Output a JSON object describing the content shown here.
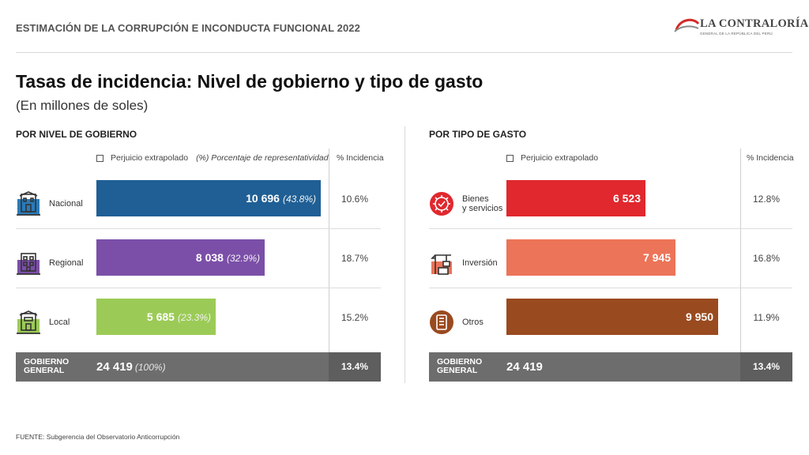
{
  "header": {
    "topbar": "ESTIMACIÓN DE LA CORRUPCIÓN E INCONDUCTA FUNCIONAL 2022"
  },
  "logo": {
    "title": "LA CONTRALORÍA",
    "subtitle": "GENERAL DE LA REPÚBLICA DEL PERÚ"
  },
  "title": "Tasas de incidencia: Nivel de gobierno y tipo de gasto",
  "subtitle": "(En millones de soles)",
  "footer": "FUENTE: Subgerencia del Observatorio Anticorrupción",
  "chart_data": [
    {
      "type": "bar",
      "orientation": "horizontal",
      "title": "POR NIVEL DE GOBIERNO",
      "legend": {
        "series": "Perjuicio extrapolado",
        "note": "(%) Porcentaje de representatividad"
      },
      "incidence_header": "% Incidencia",
      "categories": [
        "Nacional",
        "Regional",
        "Local"
      ],
      "icons": [
        "government-building-icon",
        "regional-building-icon",
        "local-building-icon"
      ],
      "values": [
        10696,
        8038,
        5685
      ],
      "value_labels": [
        "10 696",
        "8 038",
        "5 685"
      ],
      "share_labels": [
        "(43.8%)",
        "(32.9%)",
        "(23.3%)"
      ],
      "incidence": [
        "10.6%",
        "18.7%",
        "15.2%"
      ],
      "colors": [
        "#1f5f95",
        "#7b4fa8",
        "#9bcb56"
      ],
      "xlim": [
        0,
        11000
      ],
      "total": {
        "label_line1": "GOBIERNO",
        "label_line2": "GENERAL",
        "value_label": "24 419",
        "share_label": "(100%)",
        "incidence": "13.4%"
      }
    },
    {
      "type": "bar",
      "orientation": "horizontal",
      "title": "POR TIPO DE GASTO",
      "legend": {
        "series": "Perjuicio extrapolado"
      },
      "incidence_header": "% Incidencia",
      "categories": [
        "Bienes y servicios",
        "Inversión",
        "Otros"
      ],
      "category_lines": [
        [
          "Bienes",
          "y servicios"
        ],
        [
          "Inversión"
        ],
        [
          "Otros"
        ]
      ],
      "icons": [
        "gear-check-icon",
        "construction-crane-icon",
        "document-list-icon"
      ],
      "values": [
        6523,
        7945,
        9950
      ],
      "value_labels": [
        "6 523",
        "7 945",
        "9 950"
      ],
      "incidence": [
        "12.8%",
        "16.8%",
        "11.9%"
      ],
      "colors": [
        "#e0282e",
        "#ec7458",
        "#9a4a1f"
      ],
      "xlim": [
        0,
        11000
      ],
      "total": {
        "label_line1": "GOBIERNO",
        "label_line2": "GENERAL",
        "value_label": "24 419",
        "incidence": "13.4%"
      }
    }
  ]
}
